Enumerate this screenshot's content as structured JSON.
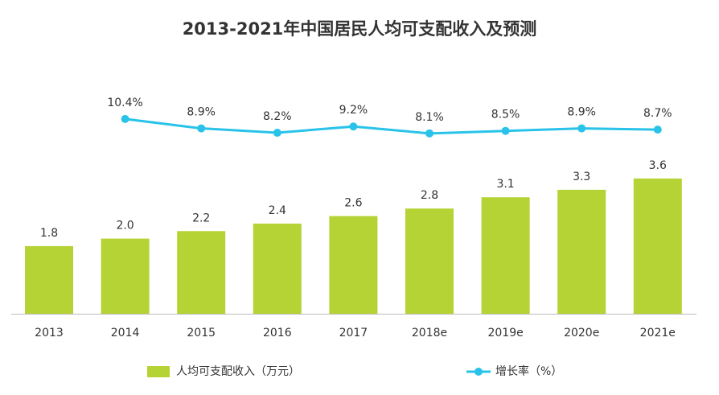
{
  "chart_data": {
    "type": "combo",
    "title": "2013-2021年中国居民人均可支配收入及预测",
    "categories": [
      "2013",
      "2014",
      "2015",
      "2016",
      "2017",
      "2018e",
      "2019e",
      "2020e",
      "2021e"
    ],
    "series": [
      {
        "name": "人均可支配收入（万元）",
        "type": "bar",
        "color": "#b5d334",
        "values": [
          1.8,
          2.0,
          2.2,
          2.4,
          2.6,
          2.8,
          3.1,
          3.3,
          3.6
        ],
        "value_labels": [
          "1.8",
          "2.0",
          "2.2",
          "2.4",
          "2.6",
          "2.8",
          "3.1",
          "3.3",
          "3.6"
        ]
      },
      {
        "name": "增长率（%）",
        "type": "line",
        "axis": "y2",
        "color": "#29c3ea",
        "values": [
          null,
          10.4,
          8.9,
          8.2,
          9.2,
          8.1,
          8.5,
          8.9,
          8.7
        ],
        "value_labels": [
          null,
          "10.4%",
          "8.9%",
          "8.2%",
          "9.2%",
          "8.1%",
          "8.5%",
          "8.9%",
          "8.7%"
        ]
      }
    ]
  }
}
